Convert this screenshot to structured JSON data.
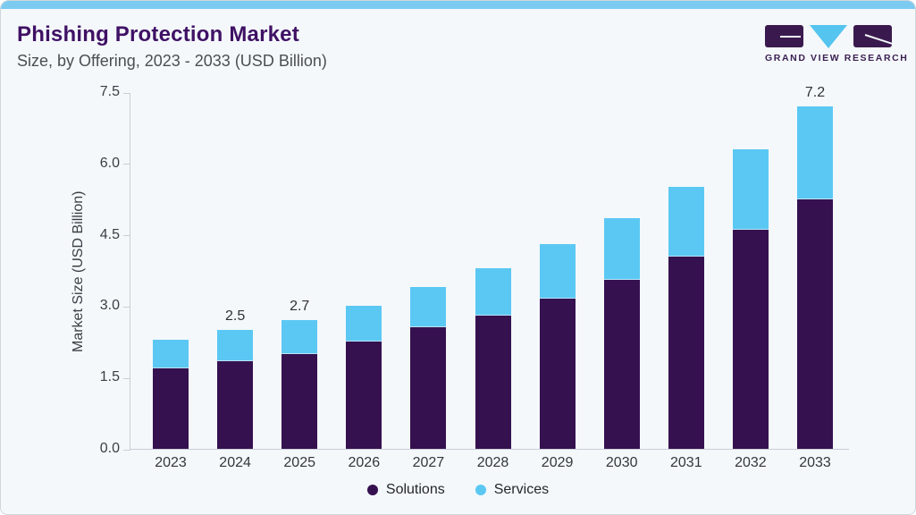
{
  "header": {
    "title": "Phishing Protection Market",
    "subtitle": "Size, by Offering, 2023 - 2033 (USD Billion)",
    "logo_text": "GRAND VIEW RESEARCH"
  },
  "chart_data": {
    "type": "bar",
    "stacked": true,
    "title": "Phishing Protection Market Size, by Offering, 2023 - 2033 (USD Billion)",
    "categories": [
      "2023",
      "2024",
      "2025",
      "2026",
      "2027",
      "2028",
      "2029",
      "2030",
      "2031",
      "2032",
      "2033"
    ],
    "series": [
      {
        "name": "Solutions",
        "color": "#351150",
        "values": [
          1.7,
          1.85,
          2.0,
          2.25,
          2.55,
          2.8,
          3.15,
          3.55,
          4.05,
          4.6,
          5.25
        ]
      },
      {
        "name": "Services",
        "color": "#5bc8f3",
        "values": [
          0.6,
          0.65,
          0.7,
          0.75,
          0.85,
          1.0,
          1.15,
          1.3,
          1.45,
          1.7,
          1.95
        ]
      }
    ],
    "totals": [
      2.3,
      2.5,
      2.7,
      3.0,
      3.4,
      3.8,
      4.3,
      4.85,
      5.5,
      6.3,
      7.2
    ],
    "total_labels": {
      "2024": "2.5",
      "2025": "2.7",
      "2033": "7.2"
    },
    "xlabel": "",
    "ylabel": "Market Size (USD Billion)",
    "ylim": [
      0,
      7.5
    ],
    "yticks": [
      0.0,
      1.5,
      3.0,
      4.5,
      6.0,
      7.5
    ],
    "grid": false,
    "legend_position": "bottom"
  },
  "colors": {
    "accent_strip": "#7ccaf0",
    "card_background": "#f4f8fb",
    "title_purple": "#3f1164",
    "solutions_purple": "#351150",
    "services_blue": "#5bc8f3",
    "axis_line": "#c9cfd6"
  }
}
